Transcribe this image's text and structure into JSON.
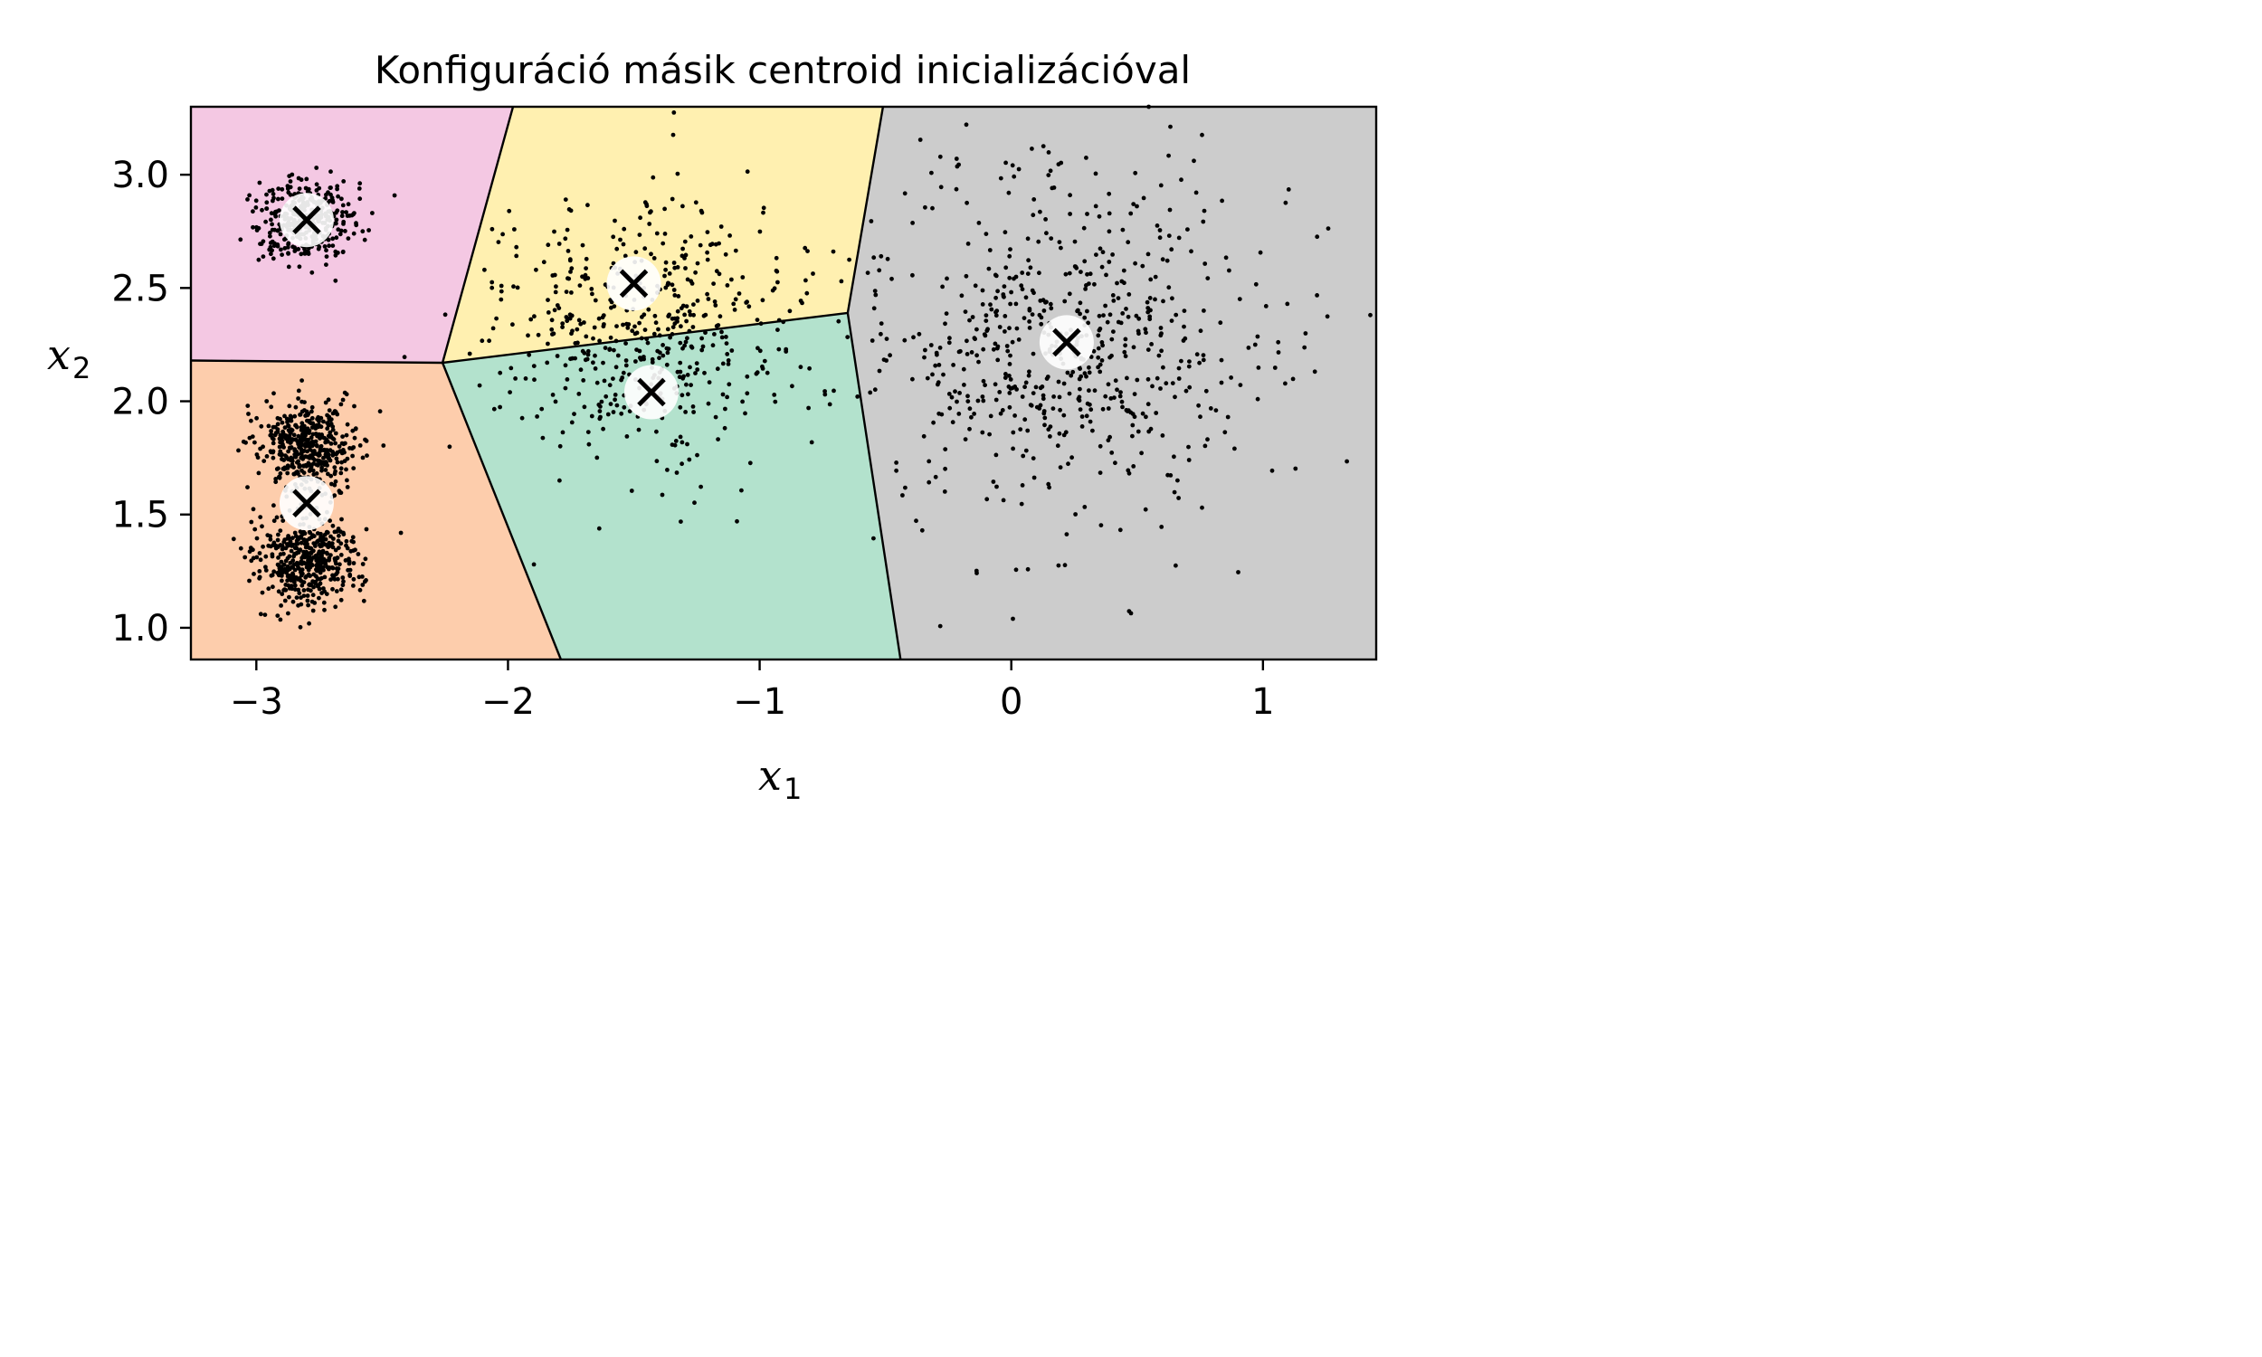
{
  "chart_data": {
    "type": "scatter",
    "title": "Konfiguráció másik centroid inicializációval",
    "xlabel": "x",
    "xlabel_sub": "1",
    "ylabel": "x",
    "ylabel_sub": "2",
    "xlim": [
      -3.26,
      1.45
    ],
    "ylim": [
      0.86,
      3.3
    ],
    "xticks": [
      -3,
      -2,
      -1,
      0,
      1
    ],
    "xtick_labels": [
      "−3",
      "−2",
      "−1",
      "0",
      "1"
    ],
    "yticks": [
      1.0,
      1.5,
      2.0,
      2.5,
      3.0
    ],
    "ytick_labels": [
      "1.0",
      "1.5",
      "2.0",
      "2.5",
      "3.0"
    ],
    "grid": false,
    "regions": [
      {
        "color": "#f4c8e3",
        "polygon": [
          [
            -3.26,
            3.3
          ],
          [
            -1.98,
            3.3
          ],
          [
            -2.26,
            2.17
          ],
          [
            -3.26,
            2.18
          ]
        ]
      },
      {
        "color": "#fff0b0",
        "polygon": [
          [
            -1.98,
            3.3
          ],
          [
            -0.51,
            3.3
          ],
          [
            -0.65,
            2.39
          ],
          [
            -2.26,
            2.17
          ]
        ]
      },
      {
        "color": "#cccccc",
        "polygon": [
          [
            -0.51,
            3.3
          ],
          [
            1.45,
            3.3
          ],
          [
            1.45,
            0.86
          ],
          [
            -0.44,
            0.86
          ],
          [
            -0.65,
            2.39
          ]
        ]
      },
      {
        "color": "#b3e2cd",
        "polygon": [
          [
            -2.26,
            2.17
          ],
          [
            -0.65,
            2.39
          ],
          [
            -0.44,
            0.86
          ],
          [
            -1.79,
            0.86
          ]
        ]
      },
      {
        "color": "#fdcdac",
        "polygon": [
          [
            -3.26,
            2.18
          ],
          [
            -2.26,
            2.17
          ],
          [
            -1.79,
            0.86
          ],
          [
            -3.26,
            0.86
          ]
        ]
      }
    ],
    "boundaries": [
      [
        [
          -3.26,
          2.18
        ],
        [
          -2.26,
          2.17
        ]
      ],
      [
        [
          -2.26,
          2.17
        ],
        [
          -1.98,
          3.3
        ]
      ],
      [
        [
          -2.26,
          2.17
        ],
        [
          -0.65,
          2.39
        ]
      ],
      [
        [
          -2.26,
          2.17
        ],
        [
          -1.79,
          0.86
        ]
      ],
      [
        [
          -0.65,
          2.39
        ],
        [
          -0.51,
          3.3
        ]
      ],
      [
        [
          -0.65,
          2.39
        ],
        [
          -0.44,
          0.86
        ]
      ]
    ],
    "blobs": [
      {
        "cx": -2.8,
        "cy": 2.8,
        "sx": 0.1,
        "sy": 0.1,
        "n": 360
      },
      {
        "cx": -2.8,
        "cy": 1.8,
        "sx": 0.1,
        "sy": 0.1,
        "n": 450
      },
      {
        "cx": -2.8,
        "cy": 1.3,
        "sx": 0.1,
        "sy": 0.1,
        "n": 450
      },
      {
        "cx": -1.47,
        "cy": 2.3,
        "sx": 0.3,
        "sy": 0.3,
        "n": 520
      },
      {
        "cx": 0.2,
        "cy": 2.25,
        "sx": 0.4,
        "sy": 0.4,
        "n": 650
      }
    ],
    "centroids": [
      {
        "x": -2.8,
        "y": 2.8
      },
      {
        "x": -2.8,
        "y": 1.55
      },
      {
        "x": -1.5,
        "y": 2.52
      },
      {
        "x": -1.43,
        "y": 2.04
      },
      {
        "x": 0.22,
        "y": 2.26
      }
    ],
    "point_color": "#000000",
    "centroid_halo_color": "#ffffff",
    "centroid_marker_color": "#000000"
  }
}
